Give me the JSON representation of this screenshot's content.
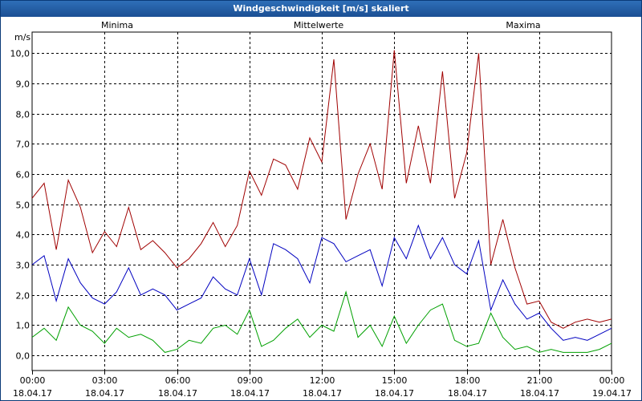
{
  "window": {
    "title": "Windgeschwindigkeit [m/s] skaliert"
  },
  "chart_data": {
    "type": "line",
    "title": "Windgeschwindigkeit [m/s] skaliert",
    "ylabel": "m/s",
    "xlabel": "",
    "ylim": [
      -0.5,
      10.7
    ],
    "xlim": [
      0,
      24
    ],
    "grid": true,
    "yticks": [
      0,
      1,
      2,
      3,
      4,
      5,
      6,
      7,
      8,
      9,
      10
    ],
    "ytick_labels": [
      "0,0",
      "1,0",
      "2,0",
      "3,0",
      "4,0",
      "5,0",
      "6,0",
      "7,0",
      "8,0",
      "9,0",
      "10,0"
    ],
    "xticks": [
      0,
      3,
      6,
      9,
      12,
      15,
      18,
      21,
      24
    ],
    "xtick_times": [
      "00:00",
      "03:00",
      "06:00",
      "09:00",
      "12:00",
      "15:00",
      "18:00",
      "21:00",
      "00:00"
    ],
    "xtick_dates": [
      "18.04.17",
      "18.04.17",
      "18.04.17",
      "18.04.17",
      "18.04.17",
      "18.04.17",
      "18.04.17",
      "18.04.17",
      "19.04.17"
    ],
    "legend": [
      "Minima",
      "Mittelwerte",
      "Maxima"
    ],
    "series": [
      {
        "name": "Minima",
        "color": "#00a000",
        "x": [
          0,
          0.5,
          1,
          1.5,
          2,
          2.5,
          3,
          3.5,
          4,
          4.5,
          5,
          5.5,
          6,
          6.5,
          7,
          7.5,
          8,
          8.5,
          9,
          9.5,
          10,
          10.5,
          11,
          11.5,
          12,
          12.5,
          13,
          13.5,
          14,
          14.5,
          15,
          15.5,
          16,
          16.5,
          17,
          17.5,
          18,
          18.5,
          19,
          19.5,
          20,
          20.5,
          21,
          21.5,
          22,
          22.5,
          23,
          23.5,
          24
        ],
        "values": [
          0.6,
          0.9,
          0.5,
          1.6,
          1.0,
          0.8,
          0.4,
          0.9,
          0.6,
          0.7,
          0.5,
          0.1,
          0.2,
          0.5,
          0.4,
          0.9,
          1.0,
          0.7,
          1.5,
          0.3,
          0.5,
          0.9,
          1.2,
          0.6,
          1.0,
          0.8,
          2.1,
          0.6,
          1.0,
          0.3,
          1.3,
          0.4,
          1.0,
          1.5,
          1.7,
          0.5,
          0.3,
          0.4,
          1.4,
          0.6,
          0.2,
          0.3,
          0.1,
          0.2,
          0.1,
          0.1,
          0.1,
          0.2,
          0.4
        ]
      },
      {
        "name": "Mittelwerte",
        "color": "#0000c0",
        "x": [
          0,
          0.5,
          1,
          1.5,
          2,
          2.5,
          3,
          3.5,
          4,
          4.5,
          5,
          5.5,
          6,
          6.5,
          7,
          7.5,
          8,
          8.5,
          9,
          9.5,
          10,
          10.5,
          11,
          11.5,
          12,
          12.5,
          13,
          13.5,
          14,
          14.5,
          15,
          15.5,
          16,
          16.5,
          17,
          17.5,
          18,
          18.5,
          19,
          19.5,
          20,
          20.5,
          21,
          21.5,
          22,
          22.5,
          23,
          23.5,
          24
        ],
        "values": [
          3.0,
          3.3,
          1.8,
          3.2,
          2.4,
          1.9,
          1.7,
          2.1,
          2.9,
          2.0,
          2.2,
          2.0,
          1.5,
          1.7,
          1.9,
          2.6,
          2.2,
          2.0,
          3.2,
          2.0,
          3.7,
          3.5,
          3.2,
          2.4,
          3.9,
          3.7,
          3.1,
          3.3,
          3.5,
          2.3,
          3.9,
          3.2,
          4.3,
          3.2,
          3.9,
          3.0,
          2.7,
          3.8,
          1.5,
          2.5,
          1.7,
          1.2,
          1.4,
          0.9,
          0.5,
          0.6,
          0.5,
          0.7,
          0.9
        ]
      },
      {
        "name": "Maxima",
        "color": "#a00000",
        "x": [
          0,
          0.5,
          1,
          1.5,
          2,
          2.5,
          3,
          3.5,
          4,
          4.5,
          5,
          5.5,
          6,
          6.5,
          7,
          7.5,
          8,
          8.5,
          9,
          9.5,
          10,
          10.5,
          11,
          11.5,
          12,
          12.5,
          13,
          13.5,
          14,
          14.5,
          15,
          15.5,
          16,
          16.5,
          17,
          17.5,
          18,
          18.5,
          19,
          19.5,
          20,
          20.5,
          21,
          21.5,
          22,
          22.5,
          23,
          23.5,
          24
        ],
        "values": [
          5.2,
          5.7,
          3.5,
          5.8,
          4.9,
          3.4,
          4.1,
          3.6,
          4.9,
          3.5,
          3.8,
          3.4,
          2.9,
          3.2,
          3.7,
          4.4,
          3.6,
          4.3,
          6.1,
          5.3,
          6.5,
          6.3,
          5.5,
          7.2,
          6.4,
          9.8,
          4.5,
          6.0,
          7.0,
          5.5,
          10.1,
          5.7,
          7.6,
          5.7,
          9.4,
          5.2,
          6.7,
          10.0,
          3.0,
          4.5,
          2.9,
          1.7,
          1.8,
          1.1,
          0.9,
          1.1,
          1.2,
          1.1,
          1.2
        ]
      }
    ]
  }
}
